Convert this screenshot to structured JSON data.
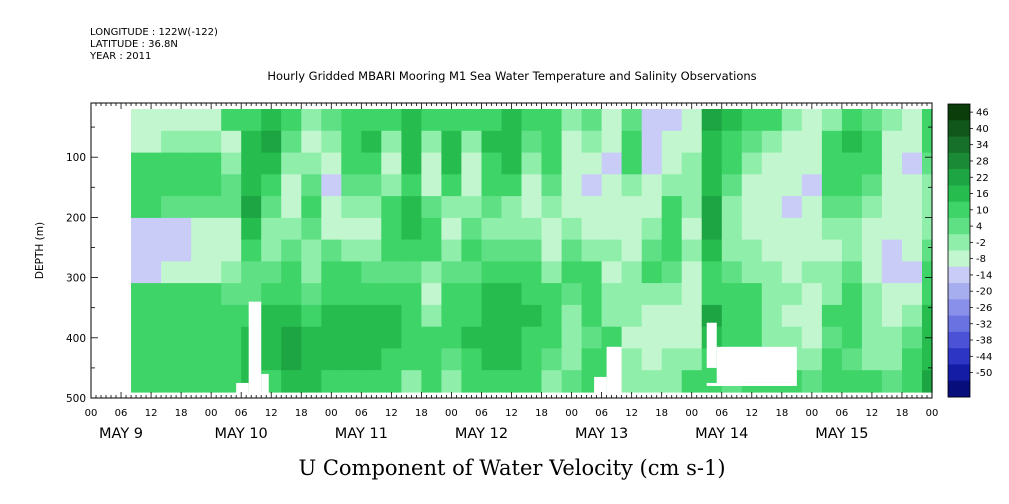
{
  "header": {
    "longitude": "LONGITUDE : 122W(-122)",
    "latitude": "LATITUDE : 36.8N",
    "year": "YEAR : 2011"
  },
  "chart_data": {
    "type": "heatmap",
    "title": "Hourly Gridded MBARI Mooring M1 Sea Water Temperature and Salinity Observations",
    "variable_label": "U Component of Water Velocity (cm s-1)",
    "ylabel": "DEPTH (m)",
    "xlim": [
      0,
      168
    ],
    "ylim": [
      500,
      10
    ],
    "y_reversed": true,
    "yticks": [
      100,
      200,
      300,
      400,
      500
    ],
    "xtick_labels": [
      "00",
      "06",
      "12",
      "18",
      "00",
      "06",
      "12",
      "18",
      "00",
      "06",
      "12",
      "18",
      "00",
      "06",
      "12",
      "18",
      "00",
      "06",
      "12",
      "18",
      "00",
      "06",
      "12",
      "18",
      "00",
      "06",
      "12",
      "18",
      "00"
    ],
    "day_labels": [
      {
        "text": "MAY  9",
        "hour": 6
      },
      {
        "text": "MAY 10",
        "hour": 30
      },
      {
        "text": "MAY 11",
        "hour": 54
      },
      {
        "text": "MAY 12",
        "hour": 78
      },
      {
        "text": "MAY 13",
        "hour": 102
      },
      {
        "text": "MAY 14",
        "hour": 126
      },
      {
        "text": "MAY 15",
        "hour": 150
      }
    ],
    "data_extent": {
      "hour_start": 8,
      "hour_end": 170,
      "depth_top": 20,
      "depth_bottom": 490
    },
    "colorbar": {
      "levels": [
        46,
        40,
        34,
        28,
        22,
        16,
        10,
        4,
        -2,
        -8,
        -14,
        -20,
        -26,
        -32,
        -38,
        -44,
        -50
      ],
      "colors": [
        "#0b3d0b",
        "#11561b",
        "#17702a",
        "#1b8a37",
        "#1ea543",
        "#26bd4e",
        "#3fd468",
        "#5fe085",
        "#8fefaa",
        "#c2f6cf",
        "#c8ccf7",
        "#a7aef0",
        "#8890ea",
        "#6a72e2",
        "#4b52d6",
        "#2d35c4",
        "#141ba5",
        "#070d7a"
      ]
    },
    "columns": [
      {
        "h0": 8,
        "h1": 14,
        "v": [
          -10,
          -10,
          6,
          6,
          8,
          -14,
          -14,
          -14,
          6,
          6,
          8,
          8,
          8
        ]
      },
      {
        "h0": 14,
        "h1": 20,
        "v": [
          -8,
          -4,
          8,
          6,
          4,
          -14,
          -14,
          -10,
          6,
          8,
          8,
          8,
          8
        ]
      },
      {
        "h0": 20,
        "h1": 26,
        "v": [
          -8,
          -4,
          8,
          6,
          4,
          -12,
          -12,
          -10,
          6,
          8,
          8,
          8,
          8
        ]
      },
      {
        "h0": 26,
        "h1": 30,
        "v": [
          8,
          -8,
          -4,
          4,
          4,
          -10,
          -8,
          -6,
          4,
          8,
          10,
          10,
          10
        ]
      },
      {
        "h0": 30,
        "h1": 34,
        "v": [
          10,
          12,
          14,
          14,
          18,
          16,
          10,
          4,
          4,
          8,
          14,
          14,
          12
        ]
      },
      {
        "h0": 34,
        "h1": 38,
        "v": [
          14,
          18,
          16,
          10,
          4,
          -6,
          -4,
          4,
          8,
          12,
          16,
          14,
          10
        ]
      },
      {
        "h0": 38,
        "h1": 42,
        "v": [
          10,
          4,
          -6,
          -10,
          -8,
          -4,
          4,
          8,
          10,
          14,
          18,
          18,
          14
        ]
      },
      {
        "h0": 42,
        "h1": 46,
        "v": [
          -6,
          -8,
          -4,
          4,
          8,
          4,
          -4,
          -6,
          4,
          10,
          14,
          16,
          12
        ]
      },
      {
        "h0": 46,
        "h1": 50,
        "v": [
          4,
          -6,
          -10,
          -14,
          -12,
          -8,
          4,
          8,
          10,
          14,
          14,
          12,
          10
        ]
      },
      {
        "h0": 50,
        "h1": 54,
        "v": [
          8,
          10,
          8,
          4,
          -6,
          -8,
          -4,
          6,
          10,
          14,
          16,
          12,
          8
        ]
      },
      {
        "h0": 54,
        "h1": 58,
        "v": [
          10,
          14,
          10,
          4,
          -4,
          -8,
          -6,
          4,
          10,
          16,
          16,
          12,
          8
        ]
      },
      {
        "h0": 58,
        "h1": 62,
        "v": [
          8,
          -4,
          -8,
          -4,
          6,
          10,
          8,
          4,
          8,
          12,
          14,
          10,
          6
        ]
      },
      {
        "h0": 62,
        "h1": 66,
        "v": [
          12,
          16,
          14,
          10,
          12,
          14,
          10,
          4,
          6,
          10,
          10,
          8,
          -4
        ]
      },
      {
        "h0": 66,
        "h1": 70,
        "v": [
          6,
          -6,
          -10,
          -8,
          4,
          8,
          6,
          -6,
          -8,
          -4,
          6,
          8,
          6
        ]
      },
      {
        "h0": 70,
        "h1": 74,
        "v": [
          10,
          14,
          12,
          8,
          -4,
          -8,
          -6,
          4,
          8,
          10,
          8,
          4,
          -6
        ]
      },
      {
        "h0": 74,
        "h1": 78,
        "v": [
          6,
          -4,
          -8,
          -10,
          -6,
          4,
          6,
          4,
          8,
          10,
          12,
          8,
          6
        ]
      },
      {
        "h0": 78,
        "h1": 82,
        "v": [
          10,
          12,
          10,
          8,
          4,
          -4,
          4,
          8,
          12,
          16,
          16,
          14,
          10
        ]
      },
      {
        "h0": 82,
        "h1": 86,
        "v": [
          12,
          16,
          14,
          8,
          -4,
          -6,
          4,
          10,
          14,
          16,
          14,
          12,
          8
        ]
      },
      {
        "h0": 86,
        "h1": 90,
        "v": [
          6,
          4,
          -6,
          -8,
          -10,
          -6,
          4,
          8,
          10,
          12,
          10,
          8,
          6
        ]
      },
      {
        "h0": 90,
        "h1": 94,
        "v": [
          8,
          10,
          8,
          4,
          -6,
          -10,
          -8,
          -4,
          6,
          8,
          6,
          4,
          -4
        ]
      },
      {
        "h0": 94,
        "h1": 98,
        "v": [
          -6,
          -8,
          -10,
          -12,
          -8,
          -4,
          4,
          6,
          4,
          -4,
          -6,
          -4,
          4
        ]
      },
      {
        "h0": 98,
        "h1": 102,
        "v": [
          4,
          -4,
          -8,
          -14,
          -12,
          -8,
          -4,
          6,
          8,
          6,
          4,
          6,
          8
        ]
      },
      {
        "h0": 102,
        "h1": 106,
        "v": [
          -8,
          -12,
          -14,
          -12,
          -10,
          -8,
          -6,
          -8,
          -6,
          -4,
          6,
          8,
          10
        ]
      },
      {
        "h0": 106,
        "h1": 110,
        "v": [
          4,
          6,
          8,
          -6,
          -8,
          -10,
          -8,
          -6,
          -4,
          -6,
          -8,
          -6,
          -4
        ]
      },
      {
        "h0": 110,
        "h1": 114,
        "v": [
          -14,
          -18,
          -16,
          -12,
          -10,
          -6,
          4,
          6,
          -4,
          -8,
          -10,
          -8,
          -6
        ]
      },
      {
        "h0": 114,
        "h1": 118,
        "v": [
          -16,
          -12,
          -8,
          -4,
          6,
          8,
          6,
          4,
          -6,
          -10,
          -8,
          -6,
          -4
        ]
      },
      {
        "h0": 118,
        "h1": 122,
        "v": [
          -12,
          -8,
          -6,
          -4,
          -6,
          -8,
          -6,
          -8,
          -10,
          -12,
          -8,
          -4,
          6
        ]
      },
      {
        "h0": 122,
        "h1": 126,
        "v": [
          20,
          16,
          14,
          14,
          18,
          18,
          12,
          8,
          10,
          18,
          16,
          8,
          6
        ]
      },
      {
        "h0": 126,
        "h1": 130,
        "v": [
          14,
          8,
          6,
          4,
          -4,
          -6,
          -4,
          4,
          6,
          8,
          6,
          4,
          4
        ]
      },
      {
        "h0": 130,
        "h1": 134,
        "v": [
          10,
          4,
          -6,
          -8,
          -10,
          -8,
          -6,
          -4,
          6,
          8,
          8,
          6,
          6
        ]
      },
      {
        "h0": 134,
        "h1": 138,
        "v": [
          8,
          -6,
          -8,
          -10,
          -12,
          -10,
          -8,
          -6,
          -4,
          -6,
          -4,
          4,
          6
        ]
      },
      {
        "h0": 138,
        "h1": 142,
        "v": [
          -6,
          -8,
          -10,
          -12,
          -14,
          -12,
          -10,
          -8,
          -6,
          -8,
          -6,
          -4,
          6
        ]
      },
      {
        "h0": 142,
        "h1": 146,
        "v": [
          -8,
          -10,
          -12,
          -14,
          -12,
          -10,
          -8,
          -6,
          -8,
          -10,
          -8,
          -6,
          4
        ]
      },
      {
        "h0": 146,
        "h1": 150,
        "v": [
          -4,
          6,
          8,
          6,
          4,
          -6,
          -8,
          -6,
          -4,
          6,
          4,
          6,
          8
        ]
      },
      {
        "h0": 150,
        "h1": 154,
        "v": [
          8,
          12,
          10,
          6,
          4,
          -4,
          -6,
          4,
          6,
          8,
          6,
          4,
          6
        ]
      },
      {
        "h0": 154,
        "h1": 158,
        "v": [
          4,
          10,
          8,
          4,
          -6,
          -8,
          -10,
          -8,
          -6,
          -4,
          -6,
          -4,
          6
        ]
      },
      {
        "h0": 158,
        "h1": 162,
        "v": [
          -6,
          -8,
          -10,
          -12,
          -10,
          -8,
          -14,
          -16,
          -12,
          -8,
          -6,
          -4,
          4
        ]
      },
      {
        "h0": 162,
        "h1": 166,
        "v": [
          -8,
          -12,
          -14,
          -10,
          -8,
          -10,
          -12,
          -14,
          -10,
          -6,
          4,
          6,
          8
        ]
      },
      {
        "h0": 166,
        "h1": 170,
        "v": [
          8,
          6,
          4,
          -4,
          -6,
          -4,
          4,
          6,
          8,
          12,
          14,
          16,
          18
        ]
      }
    ],
    "blanks": [
      {
        "h0": 29,
        "h1": 31.5,
        "d0": 475,
        "d1": 500
      },
      {
        "h0": 31.5,
        "h1": 34,
        "d0": 340,
        "d1": 500
      },
      {
        "h0": 34,
        "h1": 35.5,
        "d0": 460,
        "d1": 500
      },
      {
        "h0": 100.5,
        "h1": 103,
        "d0": 465,
        "d1": 500
      },
      {
        "h0": 103,
        "h1": 106,
        "d0": 415,
        "d1": 500
      },
      {
        "h0": 123,
        "h1": 125,
        "d0": 375,
        "d1": 450
      },
      {
        "h0": 125,
        "h1": 141,
        "d0": 415,
        "d1": 475
      },
      {
        "h0": 123,
        "h1": 141,
        "d0": 475,
        "d1": 480
      }
    ]
  }
}
